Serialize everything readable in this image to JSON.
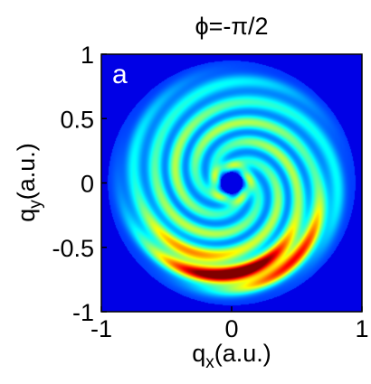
{
  "chart_data": {
    "type": "heatmap",
    "title": "ϕ=-π/2",
    "panel_label": "a",
    "xlabel": {
      "main": "q",
      "sub": "x",
      "unit": "(a.u.)"
    },
    "ylabel": {
      "main": "q",
      "sub": "y",
      "unit": "(a.u.)"
    },
    "xlim": [
      -1,
      1
    ],
    "ylim": [
      -1,
      1
    ],
    "xticks": [
      -1,
      0,
      1
    ],
    "xtick_labels": [
      "-1",
      "0",
      "1"
    ],
    "yticks": [
      1,
      0.5,
      0,
      -0.5,
      -1
    ],
    "ytick_labels": [
      "1",
      "0.5",
      "0",
      "-0.5",
      "-1"
    ],
    "colormap": "jet",
    "colors": {
      "background": "#00008f",
      "low": "#0000ff",
      "mid": "#00ffff",
      "high": "#ff0000"
    },
    "pattern": "spiral fringes on a ring centred at origin; outer ring radius ~0.8, intensity maximum near (0.05, -0.8), dark hole at centre radius ~0.08"
  }
}
